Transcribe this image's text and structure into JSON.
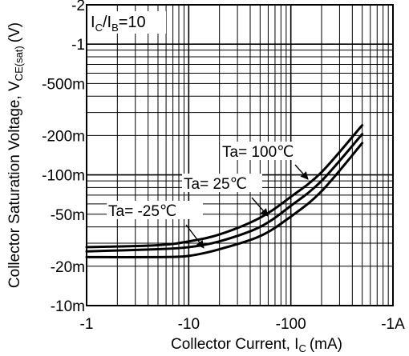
{
  "chart_data": {
    "type": "line",
    "title": "",
    "xlabel": "Collector Current, I",
    "xlabel_sub": "C",
    "xlabel_unit": "(mA)",
    "ylabel": "Collector  Saturation Voltage, V",
    "ylabel_sub": "CE(sat)",
    "ylabel_unit": "(V)",
    "x_scale": "log",
    "y_scale": "log",
    "xlim": [
      -1,
      -1000
    ],
    "ylim": [
      -0.01,
      -2
    ],
    "x_ticks": [
      {
        "value": -1,
        "label": "-1"
      },
      {
        "value": -10,
        "label": "-10"
      },
      {
        "value": -100,
        "label": "-100"
      },
      {
        "value": -1000,
        "label": "-1A"
      }
    ],
    "y_ticks": [
      {
        "value": -0.01,
        "label": "-10m"
      },
      {
        "value": -0.02,
        "label": "-20m"
      },
      {
        "value": -0.05,
        "label": "-50m"
      },
      {
        "value": -0.1,
        "label": "-100m"
      },
      {
        "value": -0.2,
        "label": "-200m"
      },
      {
        "value": -0.5,
        "label": "-500m"
      },
      {
        "value": -1,
        "label": "-1"
      },
      {
        "value": -2,
        "label": "-2"
      }
    ],
    "condition": {
      "main": "I",
      "sub1": "C",
      "sep": "/I",
      "sub2": "B",
      "tail": "=10"
    },
    "grid": true,
    "series": [
      {
        "name": "Ta= 100℃",
        "x": [
          -1,
          -5,
          -10,
          -20,
          -50,
          -100,
          -200,
          -500
        ],
        "y": [
          -0.028,
          -0.029,
          -0.031,
          -0.035,
          -0.047,
          -0.068,
          -0.105,
          -0.24
        ]
      },
      {
        "name": "Ta= 25℃",
        "x": [
          -1,
          -5,
          -10,
          -20,
          -50,
          -100,
          -200,
          -500
        ],
        "y": [
          -0.026,
          -0.027,
          -0.028,
          -0.031,
          -0.04,
          -0.058,
          -0.09,
          -0.205
        ]
      },
      {
        "name": "Ta= -25℃",
        "x": [
          -1,
          -5,
          -10,
          -20,
          -50,
          -100,
          -200,
          -500
        ],
        "y": [
          -0.0235,
          -0.0235,
          -0.024,
          -0.027,
          -0.034,
          -0.048,
          -0.075,
          -0.175
        ]
      }
    ],
    "annotations": [
      {
        "text": "Ta= 100℃",
        "series": 0
      },
      {
        "text": "Ta= 25℃",
        "series": 1
      },
      {
        "text": "Ta= -25℃",
        "series": 2
      }
    ]
  }
}
